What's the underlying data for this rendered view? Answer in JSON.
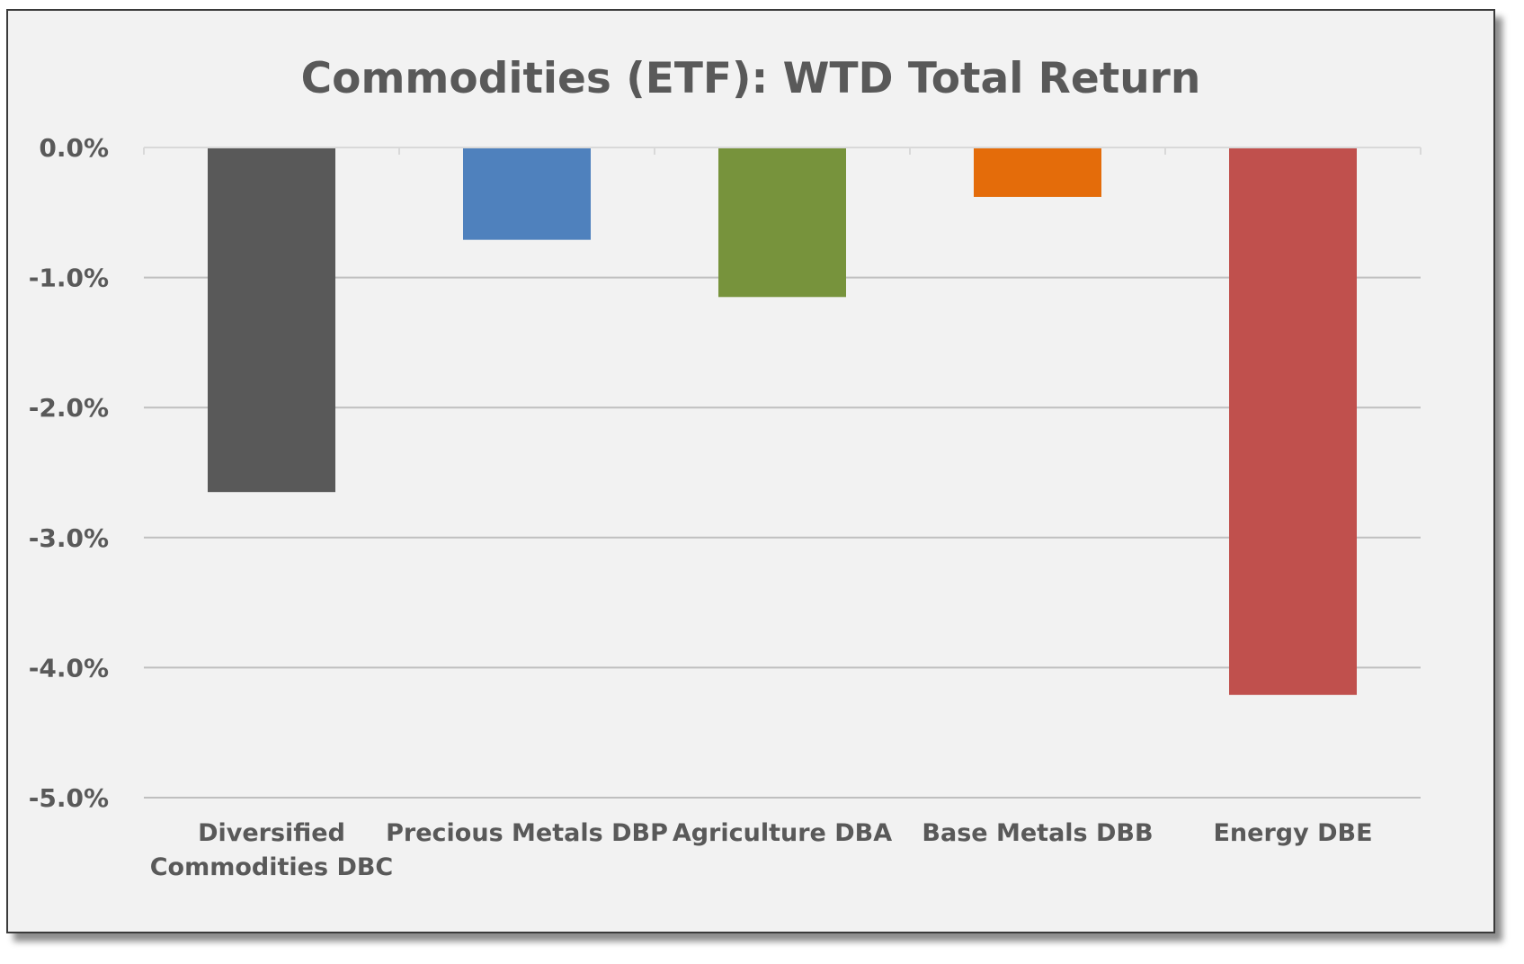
{
  "chart_data": {
    "type": "bar",
    "title": "Commodities (ETF): WTD Total Return",
    "xlabel": "",
    "ylabel": "",
    "ylim": [
      -5.0,
      0.0
    ],
    "yticks": [
      "0.0%",
      "-1.0%",
      "-2.0%",
      "-3.0%",
      "-4.0%",
      "-5.0%"
    ],
    "ytick_values": [
      0.0,
      -1.0,
      -2.0,
      -3.0,
      -4.0,
      -5.0
    ],
    "grid": true,
    "categories": [
      [
        "Diversified",
        "Commodities DBC"
      ],
      [
        "Precious Metals DBP"
      ],
      [
        "Agriculture DBA"
      ],
      [
        "Base Metals DBB"
      ],
      [
        "Energy DBE"
      ]
    ],
    "values": [
      -2.65,
      -0.71,
      -1.15,
      -0.38,
      -4.21
    ],
    "bar_colors": [
      "#595959",
      "#4f81bd",
      "#77933c",
      "#e46c0a",
      "#c0504d"
    ]
  },
  "colors": {
    "background": "#f2f2f2",
    "gridline": "#bfbfbf",
    "text": "#595959"
  }
}
